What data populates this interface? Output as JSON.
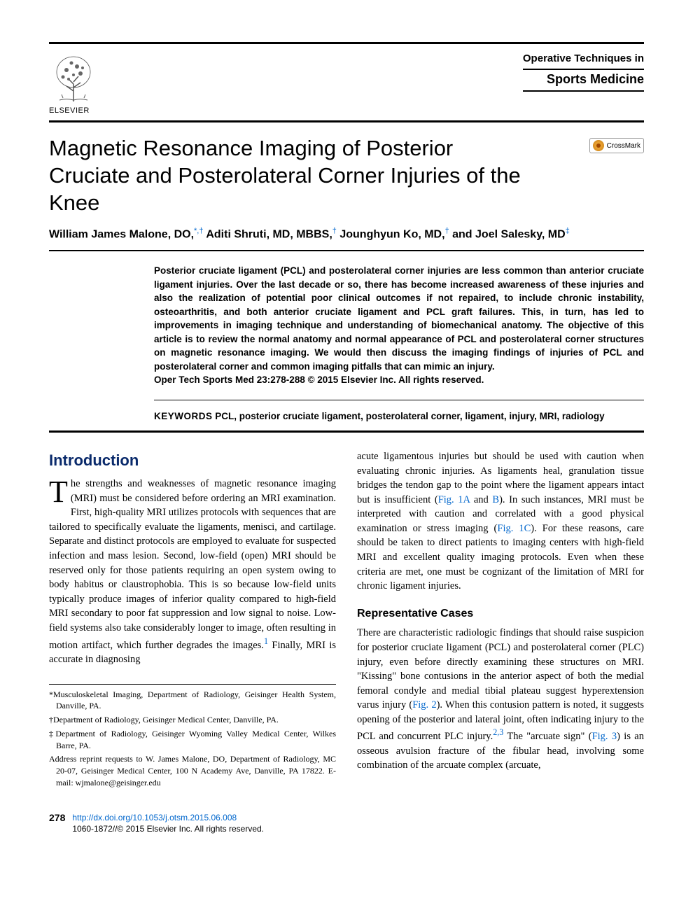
{
  "header": {
    "publisher": "ELSEVIER",
    "journal_line1": "Operative Techniques in",
    "journal_line2": "Sports Medicine",
    "crossmark_label": "CrossMark"
  },
  "article": {
    "title": "Magnetic Resonance Imaging of Posterior Cruciate and Posterolateral Corner Injuries of the Knee",
    "authors_html": "William James Malone, DO,<sup>*,†</sup> Aditi Shruti, MD, MBBS,<sup>†</sup> Jounghyun Ko, MD,<sup>†</sup> and Joel Salesky, MD<sup>‡</sup>",
    "abstract": "Posterior cruciate ligament (PCL) and posterolateral corner injuries are less common than anterior cruciate ligament injuries. Over the last decade or so, there has become increased awareness of these injuries and also the realization of potential poor clinical outcomes if not repaired, to include chronic instability, osteoarthritis, and both anterior cruciate ligament and PCL graft failures. This, in turn, has led to improvements in imaging technique and understanding of biomechanical anatomy. The objective of this article is to review the normal anatomy and normal appearance of PCL and posterolateral corner structures on magnetic resonance imaging. We would then discuss the imaging findings of injuries of PCL and posterolateral corner and common imaging pitfalls that can mimic an injury.",
    "citation": "Oper Tech Sports Med 23:278-288 © 2015 Elsevier Inc. All rights reserved.",
    "keywords_label": "KEYWORDS",
    "keywords": "PCL, posterior cruciate ligament, posterolateral corner, ligament, injury, MRI, radiology"
  },
  "sections": {
    "intro_heading": "Introduction",
    "intro_p1_first": "T",
    "intro_p1_rest": "he strengths and weaknesses of magnetic resonance imaging (MRI) must be considered before ordering an MRI examination. First, high-quality MRI utilizes protocols with sequences that are tailored to specifically evaluate the ligaments, menisci, and cartilage. Separate and distinct protocols are employed to evaluate for suspected infection and mass lesion. Second, low-field (open) MRI should be reserved only for those patients requiring an open system owing to body habitus or claustrophobia. This is so because low-field units typically produce images of inferior quality compared to high-field MRI secondary to poor fat suppression and low signal to noise. Low-field systems also take considerably longer to image, often resulting in motion artifact, which further degrades the images.",
    "intro_p1_ref": "1",
    "intro_p1_tail": " Finally, MRI is accurate in diagnosing",
    "col2_p1_pre": "acute ligamentous injuries but should be used with caution when evaluating chronic injuries. As ligaments heal, granulation tissue bridges the tendon gap to the point where the ligament appears intact but is insufficient (",
    "fig1a": "Fig. 1A",
    "col2_and": " and ",
    "figb": "B",
    "col2_p1_mid": "). In such instances, MRI must be interpreted with caution and correlated with a good physical examination or stress imaging (",
    "fig1c": "Fig. 1C",
    "col2_p1_end": "). For these reasons, care should be taken to direct patients to imaging centers with high-field MRI and excellent quality imaging protocols. Even when these criteria are met, one must be cognizant of the limitation of MRI for chronic ligament injuries.",
    "sub_heading": "Representative Cases",
    "cases_p1_pre": "There are characteristic radiologic findings that should raise suspicion for posterior cruciate ligament (PCL) and posterolateral corner (PLC) injury, even before directly examining these structures on MRI. \"Kissing\" bone contusions in the anterior aspect of both the medial femoral condyle and medial tibial plateau suggest hyperextension varus injury (",
    "fig2": "Fig. 2",
    "cases_p1_mid": "). When this contusion pattern is noted, it suggests opening of the posterior and lateral joint, often indicating injury to the PCL and concurrent PLC injury.",
    "ref23": "2,3",
    "cases_p1_mid2": " The \"arcuate sign\" (",
    "fig3": "Fig. 3",
    "cases_p1_end": ") is an osseous avulsion fracture of the fibular head, involving some combination of the arcuate complex (arcuate,"
  },
  "affiliations": {
    "a1": "*Musculoskeletal Imaging, Department of Radiology, Geisinger Health System, Danville, PA.",
    "a2": "†Department of Radiology, Geisinger Medical Center, Danville, PA.",
    "a3": "‡Department of Radiology, Geisinger Wyoming Valley Medical Center, Wilkes Barre, PA.",
    "a4": "Address reprint requests to W. James Malone, DO, Department of Radiology, MC 20-07, Geisinger Medical Center, 100 N Academy Ave, Danville, PA 17822. E-mail: wjmalone@geisinger.edu"
  },
  "footer": {
    "page_number": "278",
    "doi": "http://dx.doi.org/10.1053/j.otsm.2015.06.008",
    "copyright": "1060-1872//© 2015 Elsevier Inc. All rights reserved."
  },
  "colors": {
    "heading_blue": "#0a2a6b",
    "link_blue": "#0066cc"
  }
}
